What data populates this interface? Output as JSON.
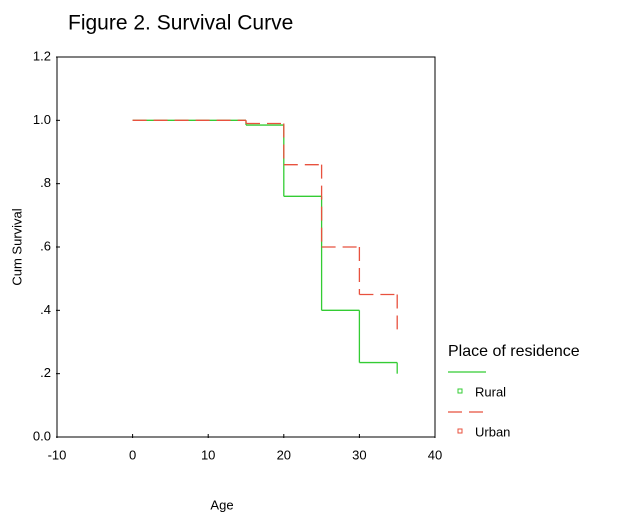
{
  "chart_data": {
    "type": "line",
    "step": "post",
    "title": "Figure 2. Survival Curve",
    "x_label": "Age",
    "y_label": "Cum Survival",
    "legend_title": "Place of residence",
    "legend": "right",
    "xlim": [
      -10,
      40
    ],
    "xticks": [
      -10,
      0,
      10,
      20,
      30,
      40
    ],
    "ylim": [
      0,
      1.2
    ],
    "yticks": [
      {
        "value": 0,
        "label": "0.0"
      },
      {
        "value": 0.2,
        "label": ".2"
      },
      {
        "value": 0.4,
        "label": ".4"
      },
      {
        "value": 0.6,
        "label": ".6"
      },
      {
        "value": 0.8,
        "label": ".8"
      },
      {
        "value": 1,
        "label": "1.0"
      },
      1.2
    ],
    "series": [
      {
        "name": "Rural",
        "color": "#33cc33",
        "dash": false,
        "x": [
          0,
          15,
          20,
          25,
          30,
          35
        ],
        "values": [
          1.0,
          0.985,
          0.76,
          0.4,
          0.235,
          0.2
        ]
      },
      {
        "name": "Urban",
        "color": "#e8513e",
        "dash": true,
        "x": [
          0,
          15,
          20,
          25,
          30,
          35
        ],
        "values": [
          1.0,
          0.99,
          0.86,
          0.6,
          0.45,
          0.34
        ]
      }
    ]
  }
}
